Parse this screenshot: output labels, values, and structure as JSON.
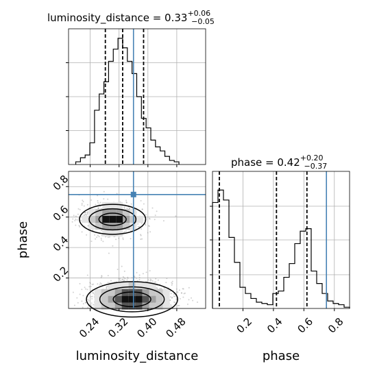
{
  "chart_data": [
    {
      "type": "histogram",
      "panel": "luminosity_distance marginal",
      "title": "luminosity_distance = 0.33^{+0.06}_{-0.05}",
      "title_main": "luminosity_distance = 0.33",
      "title_sup": "+0.06",
      "title_sub": "−0.05",
      "bins": [
        0.2,
        0.213,
        0.226,
        0.239,
        0.252,
        0.265,
        0.278,
        0.291,
        0.304,
        0.317,
        0.33,
        0.343,
        0.356,
        0.369,
        0.382,
        0.395,
        0.408,
        0.421,
        0.434,
        0.447,
        0.46,
        0.473,
        0.486
      ],
      "counts": [
        2,
        5,
        7,
        16,
        40,
        52,
        61,
        76,
        85,
        93,
        86,
        76,
        67,
        50,
        34,
        27,
        18,
        13,
        10,
        6,
        3,
        2
      ],
      "quantiles": [
        0.282,
        0.33,
        0.388
      ],
      "truth": 0.36,
      "xlim": [
        0.18,
        0.56
      ],
      "ylim": [
        0,
        100
      ],
      "grid": true
    },
    {
      "type": "scatter",
      "panel": "2D posterior (luminosity_distance vs phase)",
      "xlabel": "luminosity_distance",
      "ylabel": "phase",
      "xticks": [
        0.24,
        0.32,
        0.4,
        0.48
      ],
      "xticklabels": [
        "0.24",
        "0.32",
        "0.40",
        "0.48"
      ],
      "yticks": [
        0.2,
        0.4,
        0.6,
        0.8
      ],
      "yticklabels": [
        "0.2",
        "0.4",
        "0.6",
        "0.8"
      ],
      "xlim": [
        0.18,
        0.56
      ],
      "ylim": [
        0.0,
        0.9
      ],
      "truth": [
        0.36,
        0.748
      ],
      "clusters": [
        {
          "x_mean": 0.302,
          "y_mean": 0.585,
          "x_std": 0.045,
          "y_std": 0.055,
          "points": 700
        },
        {
          "x_mean": 0.356,
          "y_mean": 0.06,
          "x_std": 0.062,
          "y_std": 0.065,
          "points": 1100
        }
      ],
      "grid": true
    },
    {
      "type": "histogram",
      "panel": "phase marginal",
      "title": "phase = 0.42^{+0.20}_{-0.37}",
      "title_main": "phase = 0.42",
      "title_sup": "+0.20",
      "title_sub": "−0.37",
      "xlabel": "phase",
      "xticks": [
        0.2,
        0.4,
        0.6,
        0.8
      ],
      "xticklabels": [
        "0.2",
        "0.4",
        "0.6",
        "0.8"
      ],
      "bins": [
        0.0,
        0.036,
        0.072,
        0.108,
        0.144,
        0.18,
        0.216,
        0.252,
        0.288,
        0.324,
        0.36,
        0.396,
        0.432,
        0.468,
        0.504,
        0.54,
        0.576,
        0.612,
        0.648,
        0.684,
        0.72,
        0.756,
        0.792,
        0.828,
        0.864,
        0.9
      ],
      "counts": [
        85,
        95,
        87,
        57,
        37,
        17,
        12,
        8,
        5,
        4,
        3,
        12,
        14,
        25,
        36,
        52,
        62,
        64,
        30,
        20,
        12,
        6,
        4,
        3,
        1
      ],
      "quantiles": [
        0.045,
        0.42,
        0.62
      ],
      "truth": 0.748,
      "xlim": [
        0.0,
        0.9
      ],
      "ylim": [
        0,
        110
      ],
      "grid": true
    }
  ]
}
